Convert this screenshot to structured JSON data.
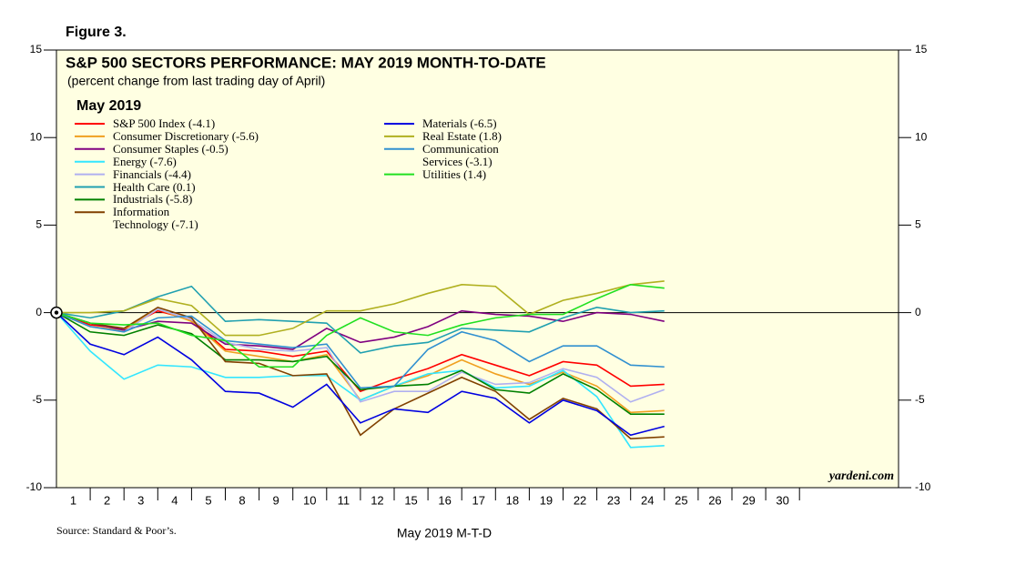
{
  "figure_label": "Figure 3.",
  "chart_data": {
    "type": "line",
    "title": "S&P 500 SECTORS PERFORMANCE: MAY 2019 MONTH-TO-DATE",
    "subtitle": "(percent change from last trading day of April)",
    "legend_title": "May 2019",
    "xlabel": "May 2019 M-T-D",
    "source": "Source: Standard & Poor’s.",
    "watermark": "yardeni.com",
    "categories": [
      null,
      "1",
      "2",
      "3",
      "4",
      "5",
      "8",
      "9",
      "10",
      "11",
      "12",
      "15",
      "16",
      "17",
      "18",
      "19",
      "22",
      "23",
      "24",
      "25",
      "26",
      "29",
      "30"
    ],
    "ylim": [
      -10,
      15
    ],
    "yticks": [
      -10,
      -5,
      0,
      5,
      10,
      15
    ],
    "legend": "upper left",
    "series": [
      {
        "name": "S&P 500 Index (-4.1)",
        "color": "#ff0000",
        "values": [
          0,
          -0.7,
          -0.9,
          0.1,
          -0.4,
          -2.1,
          -2.2,
          -2.5,
          -2.2,
          -4.5,
          -3.8,
          -3.2,
          -2.4,
          -3.0,
          -3.6,
          -2.8,
          -3.0,
          -4.2,
          -4.1,
          null,
          null,
          null,
          null
        ]
      },
      {
        "name": "Consumer Discretionary (-5.6)",
        "color": "#f0a020",
        "values": [
          0,
          -0.8,
          -1.0,
          0.2,
          -0.5,
          -2.2,
          -2.5,
          -2.8,
          -2.4,
          -5.0,
          -4.2,
          -3.6,
          -2.7,
          -3.5,
          -4.1,
          -3.4,
          -4.2,
          -5.7,
          -5.6,
          null,
          null,
          null,
          null
        ]
      },
      {
        "name": "Consumer Staples (-0.5)",
        "color": "#800080",
        "values": [
          0,
          -0.6,
          -1.0,
          -0.5,
          -0.6,
          -1.8,
          -1.9,
          -2.1,
          -0.9,
          -1.7,
          -1.4,
          -0.8,
          0.1,
          -0.1,
          -0.2,
          -0.5,
          0.0,
          -0.1,
          -0.5,
          null,
          null,
          null,
          null
        ]
      },
      {
        "name": "Energy (-7.6)",
        "color": "#33e6ff",
        "values": [
          0,
          -2.2,
          -3.8,
          -3.0,
          -3.1,
          -3.7,
          -3.7,
          -3.6,
          -3.6,
          -5.0,
          -4.2,
          -3.5,
          -3.3,
          -4.3,
          -4.2,
          -3.3,
          -4.8,
          -7.7,
          -7.6,
          null,
          null,
          null,
          null
        ]
      },
      {
        "name": "Financials (-4.4)",
        "color": "#b0b0f0",
        "values": [
          0,
          -0.8,
          -1.1,
          0.2,
          -0.4,
          -1.7,
          -2.1,
          -2.2,
          -2.0,
          -5.1,
          -4.5,
          -4.5,
          -3.4,
          -4.1,
          -4.0,
          -3.2,
          -3.7,
          -5.1,
          -4.4,
          null,
          null,
          null,
          null
        ]
      },
      {
        "name": "Health Care (0.1)",
        "color": "#20a0b0",
        "values": [
          0,
          -0.3,
          0.1,
          0.9,
          1.5,
          -0.5,
          -0.4,
          -0.5,
          -0.6,
          -2.3,
          -1.9,
          -1.7,
          -0.9,
          -1.0,
          -1.1,
          -0.3,
          0.3,
          0.0,
          0.1,
          null,
          null,
          null,
          null
        ]
      },
      {
        "name": "Industrials (-5.8)",
        "color": "#008000",
        "values": [
          0,
          -1.1,
          -1.3,
          -0.7,
          -1.2,
          -2.7,
          -2.7,
          -2.8,
          -2.5,
          -4.4,
          -4.2,
          -4.1,
          -3.3,
          -4.4,
          -4.6,
          -3.5,
          -4.4,
          -5.8,
          -5.8,
          null,
          null,
          null,
          null
        ]
      },
      {
        "name": "Information\nTechnology (-7.1)",
        "color": "#804000",
        "values": [
          0,
          -0.6,
          -0.9,
          0.3,
          -0.3,
          -2.8,
          -2.9,
          -3.6,
          -3.5,
          -7.0,
          -5.5,
          -4.6,
          -3.7,
          -4.5,
          -6.1,
          -4.9,
          -5.5,
          -7.2,
          -7.1,
          null,
          null,
          null,
          null
        ]
      },
      {
        "name": "Materials (-6.5)",
        "color": "#0000e0",
        "values": [
          0,
          -1.8,
          -2.4,
          -1.4,
          -2.7,
          -4.5,
          -4.6,
          -5.4,
          -4.1,
          -6.3,
          -5.5,
          -5.7,
          -4.5,
          -4.9,
          -6.3,
          -5.0,
          -5.6,
          -7.0,
          -6.5,
          null,
          null,
          null,
          null
        ]
      },
      {
        "name": "Real Estate (1.8)",
        "color": "#b0b020",
        "values": [
          0,
          0.0,
          0.1,
          0.8,
          0.4,
          -1.3,
          -1.3,
          -0.9,
          0.1,
          0.1,
          0.5,
          1.1,
          1.6,
          1.5,
          -0.1,
          0.7,
          1.1,
          1.6,
          1.8,
          null,
          null,
          null,
          null
        ]
      },
      {
        "name": "Communication\nServices (-3.1)",
        "color": "#3090d0",
        "values": [
          0,
          -0.8,
          -1.1,
          -0.3,
          -0.2,
          -1.6,
          -1.8,
          -2.0,
          -1.8,
          -4.3,
          -4.2,
          -2.1,
          -1.1,
          -1.6,
          -2.8,
          -1.9,
          -1.9,
          -3.0,
          -3.1,
          null,
          null,
          null,
          null
        ]
      },
      {
        "name": "Utilities (1.4)",
        "color": "#20e020",
        "values": [
          0,
          -0.6,
          -0.7,
          -0.6,
          -1.3,
          -1.6,
          -3.1,
          -3.1,
          -1.3,
          -0.3,
          -1.1,
          -1.3,
          -0.7,
          -0.3,
          -0.1,
          -0.1,
          0.8,
          1.6,
          1.4,
          null,
          null,
          null,
          null
        ]
      }
    ]
  }
}
